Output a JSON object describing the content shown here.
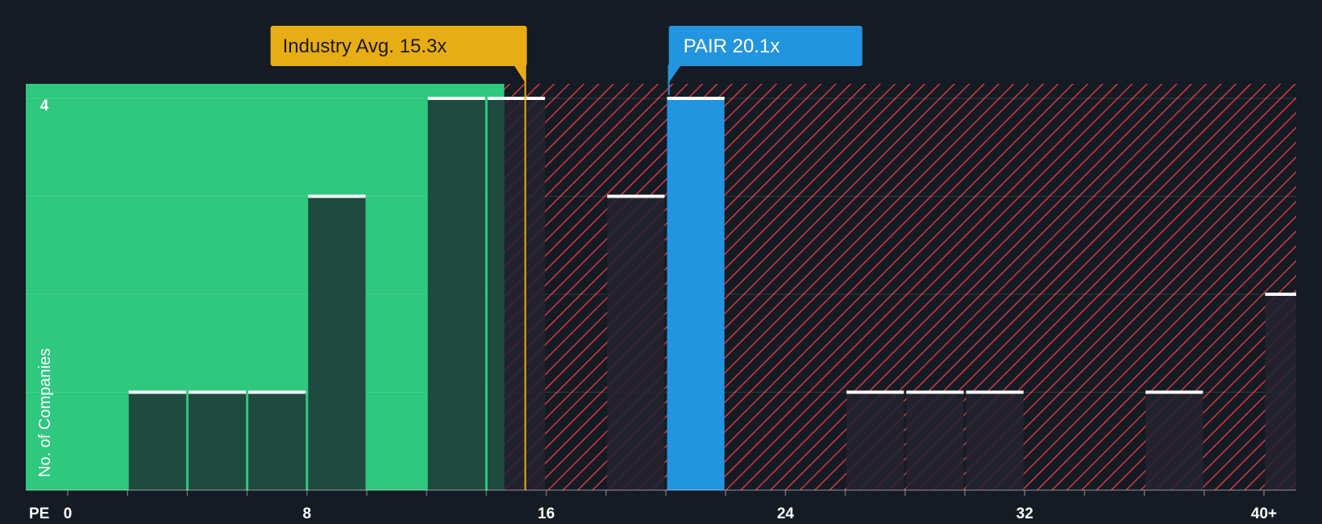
{
  "chart_data": {
    "type": "bar",
    "title": "",
    "xlabel": "PE",
    "ylabel": "No. of Companies",
    "xlim": [
      0,
      41
    ],
    "ylim": [
      0,
      4
    ],
    "x_ticks": [
      {
        "value": 0,
        "label": "0"
      },
      {
        "value": 8,
        "label": "8"
      },
      {
        "value": 16,
        "label": "16"
      },
      {
        "value": 24,
        "label": "24"
      },
      {
        "value": 32,
        "label": "32"
      },
      {
        "value": 40,
        "label": "40+"
      }
    ],
    "y_ticks": [
      {
        "value": 4,
        "label": "4"
      }
    ],
    "bin_width": 2,
    "bins": [
      {
        "start": 2,
        "count": 1
      },
      {
        "start": 4,
        "count": 1
      },
      {
        "start": 6,
        "count": 1
      },
      {
        "start": 8,
        "count": 3
      },
      {
        "start": 12,
        "count": 4
      },
      {
        "start": 14,
        "count": 4
      },
      {
        "start": 18,
        "count": 3
      },
      {
        "start": 20,
        "count": 4,
        "highlight": true
      },
      {
        "start": 26,
        "count": 1
      },
      {
        "start": 28,
        "count": 1
      },
      {
        "start": 30,
        "count": 1
      },
      {
        "start": 36,
        "count": 1
      },
      {
        "start": 40,
        "count": 2
      }
    ],
    "fair_zone_end": 14.6,
    "industry_avg": {
      "value": 15.3,
      "label": "Industry Avg. 15.3x"
    },
    "company": {
      "value": 20.1,
      "label": "PAIR 20.1x"
    },
    "colors": {
      "background": "#151b24",
      "fair_zone": "#2ec87f",
      "bar_dark": "#1f4a40",
      "bar_in_red": "#232330",
      "hatch": "#d13b3b",
      "highlight": "#2394e0",
      "industry_avg": "#e8ad14",
      "bar_cap": "#ffffff"
    }
  }
}
